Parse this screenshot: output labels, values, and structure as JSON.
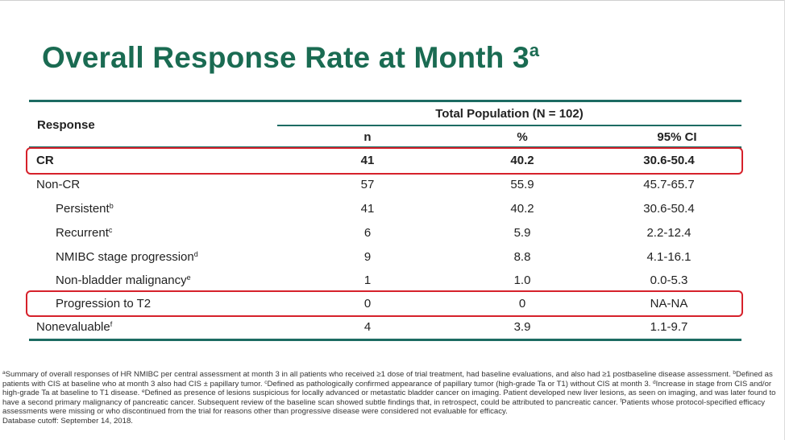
{
  "title": {
    "text": "Overall Response Rate at Month 3",
    "superscript": "a"
  },
  "table": {
    "response_header": "Response",
    "group_header": "Total Population (N = 102)",
    "columns": [
      "n",
      "%",
      "95% CI"
    ],
    "rows": [
      {
        "label": "CR",
        "sup": "",
        "n": "41",
        "pct": "40.2",
        "ci": "30.6-50.4"
      },
      {
        "label": "Non-CR",
        "sup": "",
        "n": "57",
        "pct": "55.9",
        "ci": "45.7-65.7"
      },
      {
        "label": "Persistent",
        "sup": "b",
        "n": "41",
        "pct": "40.2",
        "ci": "30.6-50.4"
      },
      {
        "label": "Recurrent",
        "sup": "c",
        "n": "6",
        "pct": "5.9",
        "ci": "2.2-12.4"
      },
      {
        "label": "NMIBC stage progression",
        "sup": "d",
        "n": "9",
        "pct": "8.8",
        "ci": "4.1-16.1"
      },
      {
        "label": "Non-bladder malignancy",
        "sup": "e",
        "n": "1",
        "pct": "1.0",
        "ci": "0.0-5.3"
      },
      {
        "label": "Progression to T2",
        "sup": "",
        "n": "0",
        "pct": "0",
        "ci": "NA-NA"
      },
      {
        "label": "Nonevaluable",
        "sup": "f",
        "n": "4",
        "pct": "3.9",
        "ci": "1.1-9.7"
      }
    ]
  },
  "colors": {
    "title": "#1a6b52",
    "rule": "#1c6b62",
    "highlight": "#d6212b"
  },
  "footnotes": {
    "a_mark": "a",
    "a_text": "Summary of overall responses of HR NMIBC per central assessment at month 3 in all patients who received ≥1 dose of trial treatment, had baseline evaluations, and also had ≥1 postbaseline disease assessment.",
    "b_mark": "b",
    "b_text": "Defined as patients with CIS at baseline who at month 3 also had CIS ± papillary tumor.",
    "c_mark": "c",
    "c_text": "Defined as pathologically confirmed appearance of papillary tumor (high-grade Ta or T1) without CIS at month 3.",
    "d_mark": "d",
    "d_text": "Increase in stage from CIS and/or high-grade Ta at baseline to T1 disease.",
    "e_mark": "e",
    "e_text": "Defined as presence of lesions suspicious for locally advanced or metastatic bladder cancer on imaging. Patient developed new liver lesions, as seen on imaging, and was later found to have a second primary malignancy of pancreatic cancer. Subsequent review of the baseline scan showed subtle findings that, in retrospect, could be attributed to pancreatic cancer.",
    "f_mark": "f",
    "f_text": "Patients whose protocol-specified efficacy assessments were missing or who discontinued from the trial for reasons other than progressive disease were considered not evaluable for efficacy.",
    "cutoff": "Database cutoff: September 14, 2018."
  }
}
